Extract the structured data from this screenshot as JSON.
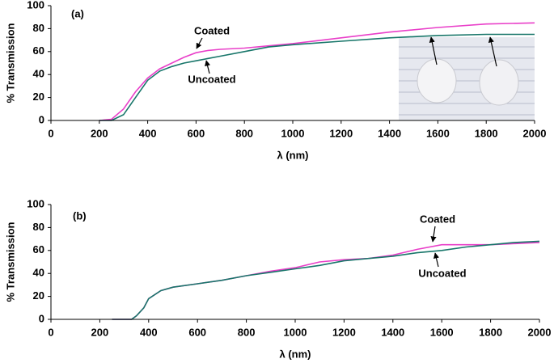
{
  "chart_data": [
    {
      "type": "line",
      "label": "(a)",
      "xlabel": "λ (nm)",
      "ylabel": "% Transmission",
      "x": [
        200,
        250,
        300,
        350,
        400,
        450,
        500,
        550,
        600,
        650,
        700,
        800,
        900,
        1000,
        1200,
        1400,
        1600,
        1800,
        2000
      ],
      "series": [
        {
          "name": "Coated",
          "color": "#e93fc9",
          "values": [
            0,
            1,
            10,
            25,
            37,
            45,
            50,
            55,
            59,
            61,
            62,
            63,
            65,
            67,
            72,
            77,
            81,
            84,
            85
          ]
        },
        {
          "name": "Uncoated",
          "color": "#18766a",
          "values": [
            0,
            0,
            5,
            20,
            35,
            43,
            47,
            50,
            52,
            54,
            56,
            60,
            64,
            66,
            69,
            72,
            74,
            75,
            75
          ]
        }
      ],
      "xlim": [
        0,
        2000
      ],
      "xticks": [
        0,
        200,
        400,
        600,
        800,
        1000,
        1200,
        1400,
        1600,
        1800,
        2000
      ],
      "ylim": [
        0,
        100
      ],
      "yticks": [
        0,
        20,
        40,
        60,
        80,
        100
      ]
    },
    {
      "type": "line",
      "label": "(b)",
      "xlabel": "λ (nm)",
      "ylabel": "% Transmission",
      "x": [
        250,
        330,
        350,
        380,
        400,
        450,
        500,
        600,
        700,
        800,
        900,
        1000,
        1100,
        1200,
        1300,
        1400,
        1500,
        1600,
        1700,
        1800,
        1900,
        2000
      ],
      "series": [
        {
          "name": "Coated",
          "color": "#e93fc9",
          "values": [
            0,
            0,
            3,
            10,
            18,
            25,
            28,
            31,
            34,
            38,
            42,
            45,
            50,
            52,
            53,
            56,
            61,
            65,
            65,
            65,
            66,
            67
          ]
        },
        {
          "name": "Uncoated",
          "color": "#18766a",
          "values": [
            0,
            0,
            3,
            10,
            18,
            25,
            28,
            31,
            34,
            38,
            41,
            44,
            47,
            51,
            53,
            55,
            58,
            60,
            63,
            65,
            67,
            68
          ]
        }
      ],
      "xlim": [
        0,
        2000
      ],
      "xticks": [
        0,
        200,
        400,
        600,
        800,
        1000,
        1200,
        1400,
        1600,
        1800,
        2000
      ],
      "ylim": [
        0,
        100
      ],
      "yticks": [
        0,
        20,
        40,
        60,
        80,
        100
      ]
    }
  ]
}
